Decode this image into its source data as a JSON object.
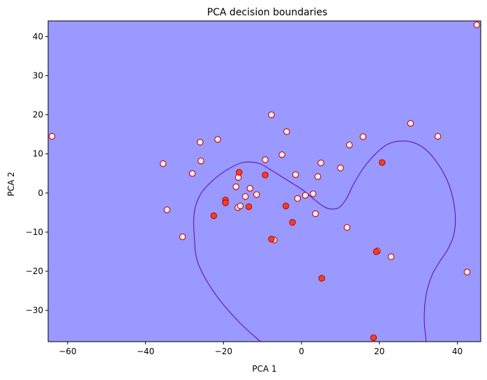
{
  "chart_data": {
    "type": "scatter",
    "title": "PCA decision boundaries",
    "xlabel": "PCA 1",
    "ylabel": "PCA 2",
    "xlim": [
      -65,
      46
    ],
    "ylim": [
      -38,
      44
    ],
    "grid": false,
    "background_color": "#9999ff",
    "boundary_color": "#5b00c8",
    "point_edge_color": "#cc0000",
    "filled_point_color": "#e8442a",
    "hollow_point_color": "#f3eeee",
    "x_ticks": [
      -60,
      -40,
      -20,
      0,
      20,
      40
    ],
    "y_ticks": [
      -30,
      -20,
      -10,
      0,
      10,
      20,
      30,
      40
    ],
    "x_tick_labels": [
      "−60",
      "−40",
      "−20",
      "0",
      "20",
      "40"
    ],
    "y_tick_labels": [
      "−30",
      "−20",
      "−10",
      "0",
      "10",
      "20",
      "30",
      "40"
    ],
    "boundary_curves": [
      [
        [
          -10.5,
          -38
        ],
        [
          -16,
          -33
        ],
        [
          -22,
          -26
        ],
        [
          -26.5,
          -18
        ],
        [
          -27.5,
          -11
        ],
        [
          -27.5,
          -5
        ],
        [
          -26,
          -0.5
        ],
        [
          -23,
          3
        ],
        [
          -19,
          6
        ],
        [
          -15,
          7.8
        ],
        [
          -11,
          7.6
        ],
        [
          -8,
          6
        ],
        [
          -4,
          3.5
        ],
        [
          0,
          1
        ],
        [
          2.5,
          -1
        ],
        [
          5,
          -3
        ],
        [
          7,
          -4
        ],
        [
          9.5,
          -3.8
        ],
        [
          11.5,
          -1.5
        ],
        [
          13.5,
          2.5
        ],
        [
          16,
          6.5
        ],
        [
          19,
          10
        ],
        [
          22,
          12.4
        ],
        [
          25.5,
          13.3
        ],
        [
          29,
          12.8
        ],
        [
          32,
          11
        ],
        [
          35,
          7.5
        ],
        [
          37.5,
          3
        ],
        [
          39,
          -2
        ],
        [
          39.5,
          -7
        ],
        [
          39,
          -11
        ],
        [
          37.5,
          -14.5
        ],
        [
          35.5,
          -17.5
        ],
        [
          33.5,
          -21
        ],
        [
          32,
          -26
        ],
        [
          31.5,
          -32
        ],
        [
          32,
          -38
        ]
      ]
    ],
    "points_hollow": [
      [
        -64,
        14.5
      ],
      [
        45,
        43
      ],
      [
        -35.5,
        7.5
      ],
      [
        -34.5,
        -4.3
      ],
      [
        -30.5,
        -11.2
      ],
      [
        -28,
        5
      ],
      [
        -26,
        13
      ],
      [
        -25.8,
        8.2
      ],
      [
        -21.5,
        13.7
      ],
      [
        -16.3,
        -3.7
      ],
      [
        -15.7,
        -3.3
      ],
      [
        -16.2,
        4
      ],
      [
        -14.4,
        -0.9
      ],
      [
        -13.2,
        1.2
      ],
      [
        -11.5,
        -0.4
      ],
      [
        -9.3,
        8.5
      ],
      [
        -7.7,
        20
      ],
      [
        -7,
        -12
      ],
      [
        -5,
        9.8
      ],
      [
        -3.8,
        15.7
      ],
      [
        -1.5,
        4.7
      ],
      [
        -1,
        -1.4
      ],
      [
        1,
        -0.6
      ],
      [
        3,
        -0.2
      ],
      [
        3.6,
        -5.3
      ],
      [
        4.2,
        4.2
      ],
      [
        5,
        7.7
      ],
      [
        10,
        6.4
      ],
      [
        11.7,
        -8.8
      ],
      [
        12.3,
        12.3
      ],
      [
        15.8,
        14.4
      ],
      [
        19.5,
        -14.8
      ],
      [
        23,
        -16.3
      ],
      [
        28,
        17.8
      ],
      [
        35,
        14.5
      ],
      [
        42.5,
        -20.2
      ],
      [
        -16.8,
        1.6
      ]
    ],
    "points_filled": [
      [
        -22.5,
        -5.8
      ],
      [
        -19.5,
        -1.8
      ],
      [
        -19.5,
        -2.5
      ],
      [
        -16,
        5.3
      ],
      [
        -13.5,
        -3.5
      ],
      [
        -9.3,
        4.6
      ],
      [
        -7.7,
        -11.8
      ],
      [
        -4,
        -3.3
      ],
      [
        -2.3,
        -7.5
      ],
      [
        5.2,
        -21.8
      ],
      [
        19.2,
        -15
      ],
      [
        20.7,
        7.8
      ],
      [
        18.5,
        -37
      ]
    ]
  }
}
